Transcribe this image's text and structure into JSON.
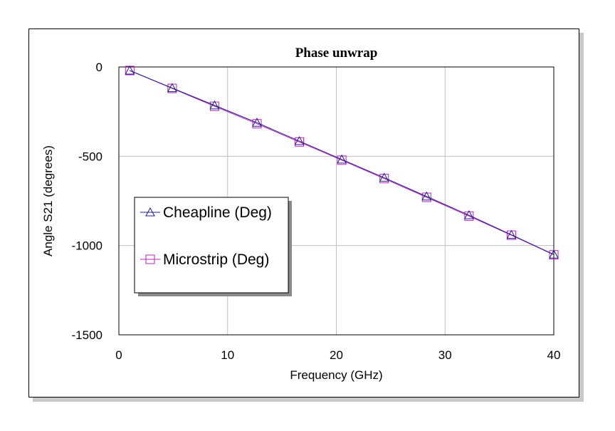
{
  "chart_data": {
    "type": "line",
    "title": "Phase unwrap",
    "xlabel": "Frequency (GHz)",
    "ylabel": "Angle S21 (degrees)",
    "xlim": [
      0,
      40
    ],
    "ylim": [
      -1500,
      0
    ],
    "x_ticks": [
      0,
      10,
      20,
      30,
      40
    ],
    "y_ticks": [
      0,
      -500,
      -1000,
      -1500
    ],
    "grid": true,
    "legend_placement": "left-middle",
    "series": [
      {
        "name": "Cheapline (Deg)",
        "color": "#1f1f8f",
        "marker": "triangle",
        "x": [
          1,
          4.9,
          8.8,
          12.7,
          16.6,
          20.5,
          24.4,
          28.3,
          32.2,
          36.1,
          40
        ],
        "y": [
          -20,
          -118,
          -215,
          -312,
          -415,
          -518,
          -620,
          -725,
          -830,
          -940,
          -1050
        ]
      },
      {
        "name": "Microstrip (Deg)",
        "color": "#c020c0",
        "marker": "square",
        "x": [
          1,
          4.9,
          8.8,
          12.7,
          16.6,
          20.5,
          24.4,
          28.3,
          32.2,
          36.1,
          40
        ],
        "y": [
          -20,
          -120,
          -220,
          -318,
          -420,
          -522,
          -625,
          -730,
          -835,
          -942,
          -1052
        ]
      }
    ]
  }
}
